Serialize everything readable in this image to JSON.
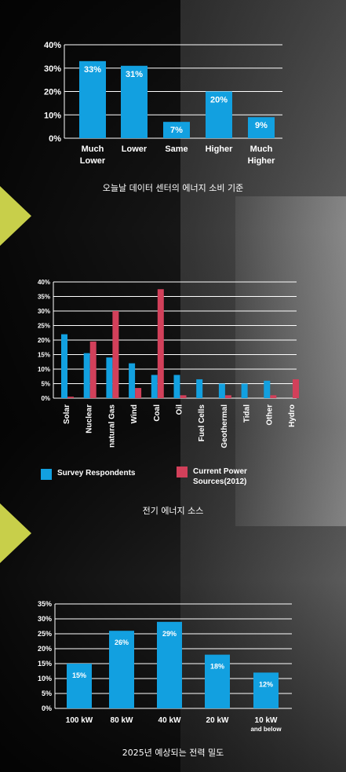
{
  "colors": {
    "bar_blue": "#12a0e0",
    "bar_red": "#d2405a",
    "accent_arrow": "#c8cf4a",
    "grid": "#ffffff",
    "text": "#ffffff"
  },
  "chart_data": [
    {
      "type": "bar",
      "caption": "오늘날 데이터 센터의 에너지 소비 기준",
      "categories": [
        [
          "Much",
          "Lower"
        ],
        [
          "Lower"
        ],
        [
          "Same"
        ],
        [
          "Higher"
        ],
        [
          "Much",
          "Higher"
        ]
      ],
      "values": [
        33,
        31,
        7,
        20,
        9
      ],
      "value_labels": [
        "33%",
        "31%",
        "7%",
        "20%",
        "9%"
      ],
      "yticks": [
        "0%",
        "10%",
        "20%",
        "30%",
        "40%"
      ],
      "ylim": [
        0,
        40
      ],
      "grid": true
    },
    {
      "type": "bar",
      "caption": "전기 에너지 소스",
      "categories": [
        "Solar",
        "Nuclear",
        "natural Gas",
        "Wind",
        "Coal",
        "Oil",
        "Fuel Cells",
        "Geothermal",
        "Tidal",
        "Other",
        "Hydro"
      ],
      "series": [
        {
          "name": "Survey Respondents",
          "values": [
            22,
            15.5,
            14,
            12,
            8,
            8,
            6.5,
            5,
            5,
            6,
            0
          ]
        },
        {
          "name": "Current Power Sources(2012)",
          "values": [
            0.5,
            19.5,
            30,
            3.5,
            37.5,
            1,
            0,
            1,
            0,
            1,
            6.5
          ]
        }
      ],
      "legend": [
        "Survey Respondents",
        "Current Power Sources(2012)"
      ],
      "legend_position": "bottom",
      "yticks": [
        "0%",
        "5%",
        "10%",
        "15%",
        "20%",
        "25%",
        "30%",
        "35%",
        "40%"
      ],
      "ylim": [
        0,
        40
      ],
      "grid": true
    },
    {
      "type": "bar",
      "caption": "2025년 예상되는 전력 밀도",
      "categories": [
        [
          "100 kW"
        ],
        [
          "80 kW"
        ],
        [
          "40 kW"
        ],
        [
          "20 kW"
        ],
        [
          "10 kW",
          "and below"
        ]
      ],
      "values": [
        15,
        26,
        29,
        18,
        12
      ],
      "value_labels": [
        "15%",
        "26%",
        "29%",
        "18%",
        "12%"
      ],
      "yticks": [
        "0%",
        "5%",
        "10%",
        "15%",
        "20%",
        "25%",
        "30%",
        "35%"
      ],
      "ylim": [
        0,
        35
      ],
      "grid": true
    }
  ]
}
